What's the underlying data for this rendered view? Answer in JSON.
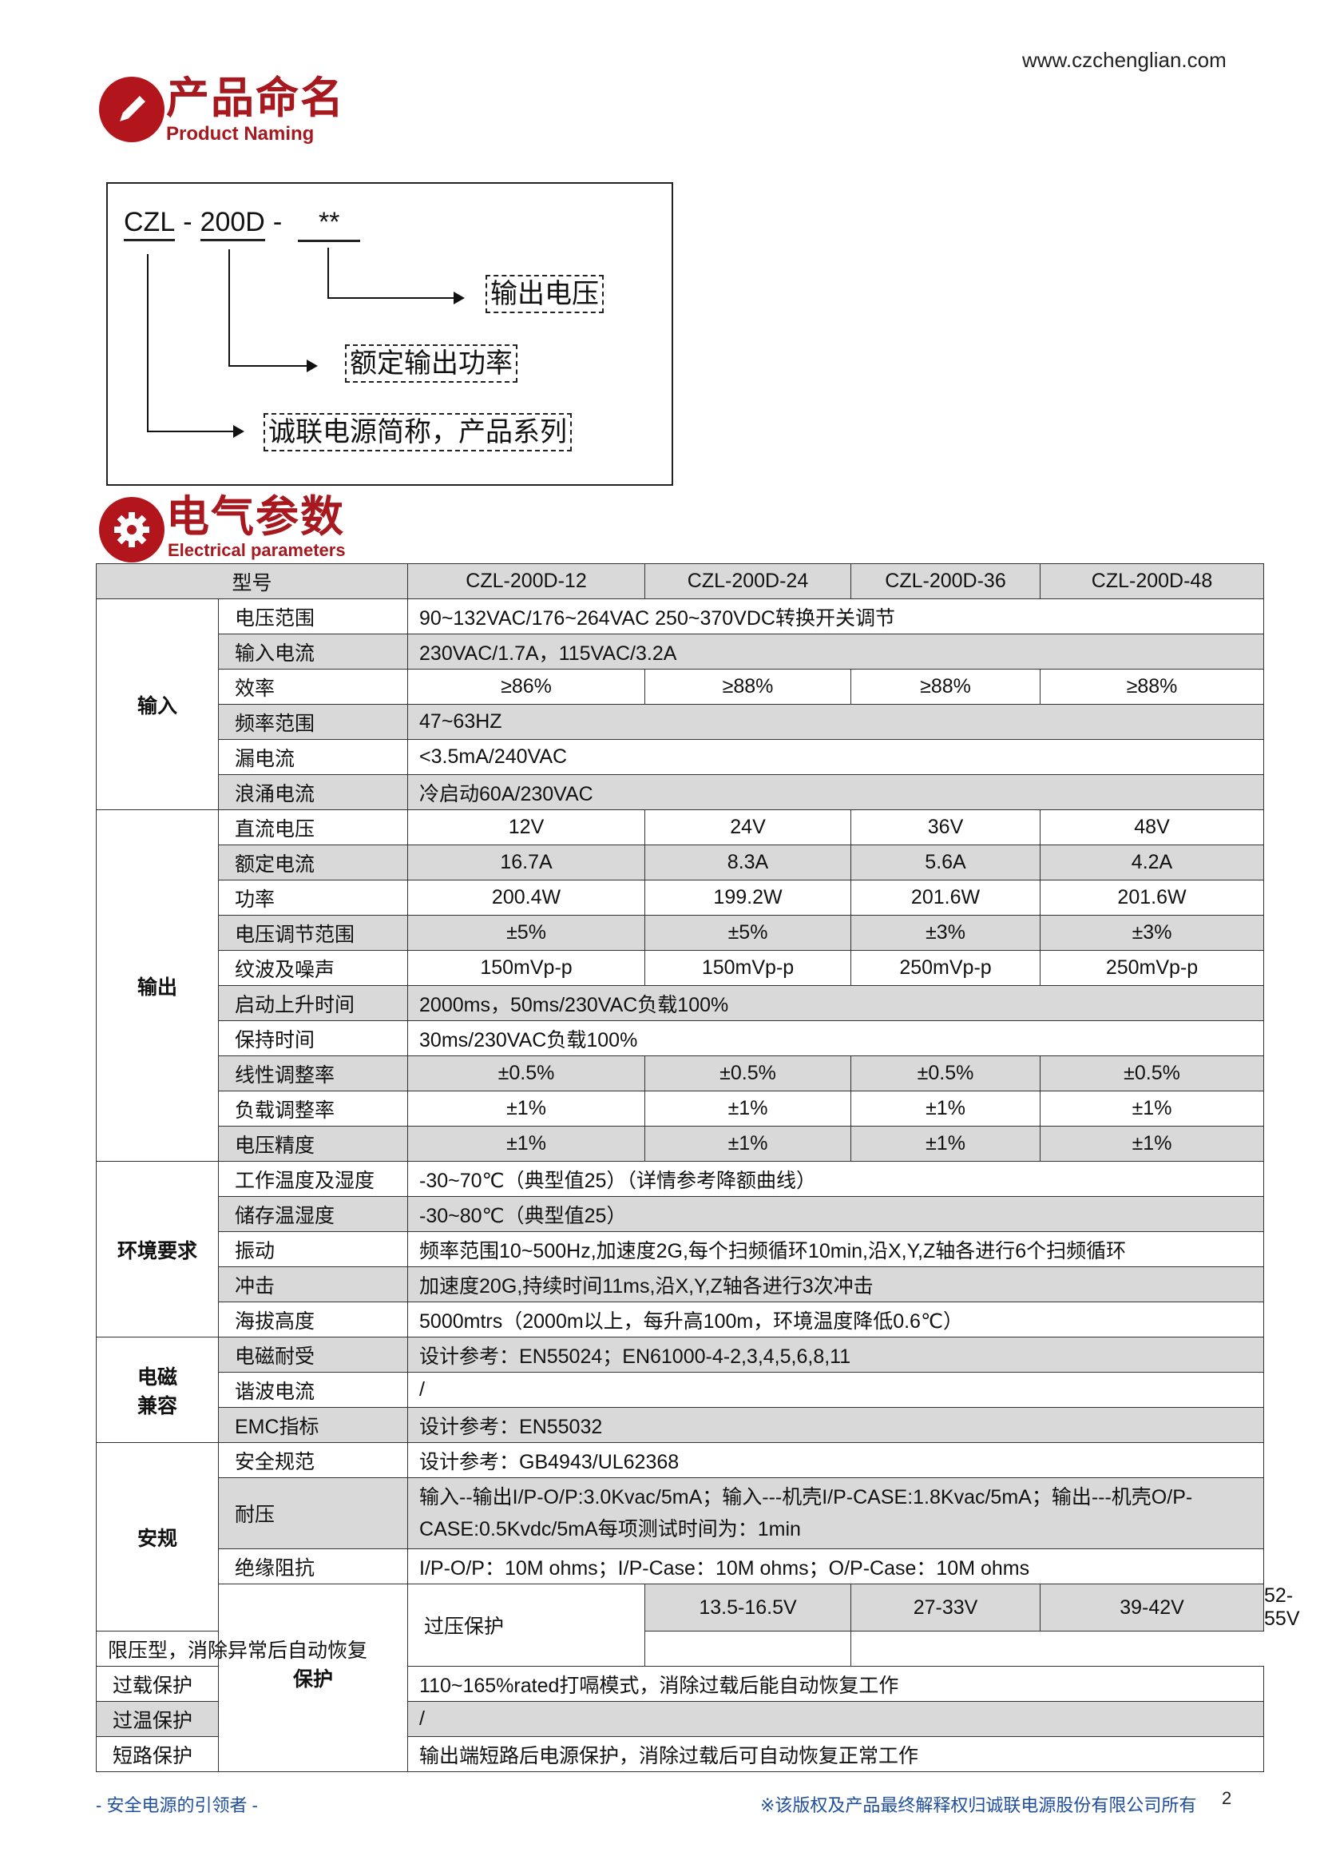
{
  "website": "www.czchenglian.com",
  "naming_section": {
    "title": "产品命名",
    "subtitle": "Product Naming",
    "icon": "pencil-icon",
    "code_parts": [
      "CZL",
      "-",
      "200D",
      "-",
      "**"
    ],
    "labels": {
      "output_voltage": "输出电压",
      "rated_power": "额定输出功率",
      "series": "诚联电源简称，产品系列"
    }
  },
  "electrical_section": {
    "title": "电气参数",
    "subtitle": "Electrical parameters",
    "icon": "gear-icon"
  },
  "colors": {
    "brand_red": "#a8181f",
    "row_shade": "#d9d9d9",
    "footer_blue": "#1f4f9e"
  },
  "table": {
    "header": {
      "label": "型号",
      "models": [
        "CZL-200D-12",
        "CZL-200D-24",
        "CZL-200D-36",
        "CZL-200D-48"
      ]
    },
    "groups": [
      {
        "name": "输入",
        "rows": [
          {
            "label": "电压范围",
            "value": "90~132VAC/176~264VAC 250~370VDC转换开关调节"
          },
          {
            "label": "输入电流",
            "value": "230VAC/1.7A，115VAC/3.2A"
          },
          {
            "label": "效率",
            "values": [
              "≥86%",
              "≥88%",
              "≥88%",
              "≥88%"
            ]
          },
          {
            "label": "频率范围",
            "value": "47~63HZ"
          },
          {
            "label": "漏电流",
            "value": "<3.5mA/240VAC"
          },
          {
            "label": "浪涌电流",
            "value": "冷启动60A/230VAC"
          }
        ]
      },
      {
        "name": "输出",
        "rows": [
          {
            "label": "直流电压",
            "values": [
              "12V",
              "24V",
              "36V",
              "48V"
            ]
          },
          {
            "label": "额定电流",
            "values": [
              "16.7A",
              "8.3A",
              "5.6A",
              "4.2A"
            ]
          },
          {
            "label": "功率",
            "values": [
              "200.4W",
              "199.2W",
              "201.6W",
              "201.6W"
            ]
          },
          {
            "label": "电压调节范围",
            "values": [
              "±5%",
              "±5%",
              "±3%",
              "±3%"
            ]
          },
          {
            "label": "纹波及噪声",
            "values": [
              "150mVp-p",
              "150mVp-p",
              "250mVp-p",
              "250mVp-p"
            ]
          },
          {
            "label": "启动上升时间",
            "value": "2000ms，50ms/230VAC负载100%"
          },
          {
            "label": "保持时间",
            "value": "30ms/230VAC负载100%"
          },
          {
            "label": "线性调整率",
            "values": [
              "±0.5%",
              "±0.5%",
              "±0.5%",
              "±0.5%"
            ]
          },
          {
            "label": "负载调整率",
            "values": [
              "±1%",
              "±1%",
              "±1%",
              "±1%"
            ]
          },
          {
            "label": "电压精度",
            "values": [
              "±1%",
              "±1%",
              "±1%",
              "±1%"
            ]
          }
        ]
      },
      {
        "name": "环境要求",
        "rows": [
          {
            "label": "工作温度及湿度",
            "value": "-30~70℃（典型值25）（详情参考降额曲线）"
          },
          {
            "label": "储存温湿度",
            "value": "-30~80℃（典型值25）"
          },
          {
            "label": "振动",
            "value": "频率范围10~500Hz,加速度2G,每个扫频循环10min,沿X,Y,Z轴各进行6个扫频循环"
          },
          {
            "label": "冲击",
            "value": "加速度20G,持续时间11ms,沿X,Y,Z轴各进行3次冲击"
          },
          {
            "label": "海拔高度",
            "value": "5000mtrs（2000m以上，每升高100m，环境温度降低0.6℃）"
          }
        ]
      },
      {
        "name": "电磁\n兼容",
        "rows": [
          {
            "label": "电磁耐受",
            "value": "设计参考：EN55024；EN61000-4-2,3,4,5,6,8,11"
          },
          {
            "label": "谐波电流",
            "value": "/"
          },
          {
            "label": "EMC指标",
            "value": "设计参考：EN55032"
          }
        ]
      },
      {
        "name": "安规",
        "rows": [
          {
            "label": "安全规范",
            "value": "设计参考：GB4943/UL62368"
          },
          {
            "label": "耐压",
            "value": "输入--输出I/P-O/P:3.0Kvac/5mA；输入---机壳I/P-CASE:1.8Kvac/5mA；输出---机壳O/P-CASE:0.5Kvdc/5mA每项测试时间为：1min",
            "tall": true
          },
          {
            "label": "绝缘阻抗",
            "value": "I/P-O/P：10M ohms；I/P-Case：10M ohms；O/P-Case：10M ohms"
          }
        ]
      },
      {
        "name": "保护",
        "rows": [
          {
            "label": "过压保护",
            "values": [
              "13.5-16.5V",
              "27-33V",
              "39-42V",
              "52-55V"
            ],
            "note": "限压型，消除异常后自动恢复"
          },
          {
            "label": "过载保护",
            "value": "110~165%rated打嗝模式，消除过载后能自动恢复工作"
          },
          {
            "label": "过温保护",
            "value": "/"
          },
          {
            "label": "短路保护",
            "value": "输出端短路后电源保护，消除过载后可自动恢复正常工作"
          }
        ]
      }
    ]
  },
  "footer": {
    "slogan": "- 安全电源的引领者 -",
    "copyright": "※该版权及产品最终解释权归诚联电源股份有限公司所有",
    "page": "2"
  }
}
